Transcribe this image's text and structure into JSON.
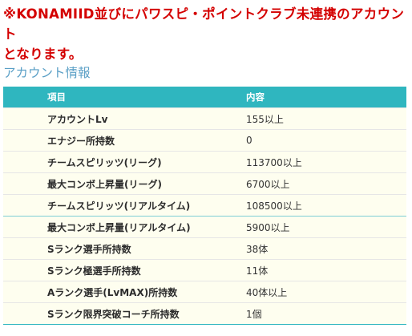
{
  "notice": {
    "line1": "※KONAMIID並びにパワスピ・ポイントクラブ未連携のアカウント",
    "line2": "となります。"
  },
  "section": {
    "title": "アカウント情報"
  },
  "table": {
    "headers": [
      "項目",
      "内容"
    ],
    "rows": [
      {
        "item": "アカウントLv",
        "value": "155以上"
      },
      {
        "item": "エナジー所持数",
        "value": "0"
      },
      {
        "item": "チームスピリッツ(リーグ)",
        "value": "113700以上"
      },
      {
        "item": "最大コンボ上昇量(リーグ)",
        "value": "6700以上"
      },
      {
        "item": "チームスピリッツ(リアルタイム)",
        "value": "108500以上"
      },
      {
        "item": "最大コンボ上昇量(リアルタイム)",
        "value": "5900以上"
      },
      {
        "item": "Sランク選手所持数",
        "value": "38体"
      },
      {
        "item": "Sランク極選手所持数",
        "value": "11体"
      },
      {
        "item": "Aランク選手(LvMAX)所持数",
        "value": "40体以上"
      },
      {
        "item": "Sランク限界突破コーチ所持数",
        "value": "1個"
      }
    ]
  },
  "colors": {
    "notice": "#d40000",
    "section_title": "#5a9fc6",
    "header_bg": "#2fb6bf",
    "row_bg": "#fefeef"
  }
}
